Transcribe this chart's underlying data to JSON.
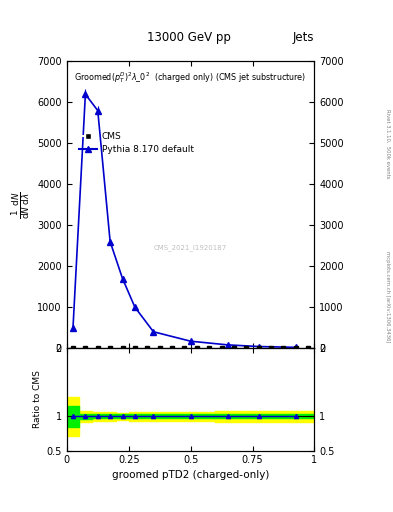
{
  "title_top": "13000 GeV pp",
  "title_right": "Jets",
  "plot_title": "Groomed$(p_T^D)^2\\lambda\\_0^2$  (charged only) (CMS jet substructure)",
  "watermark": "CMS_2021_I1920187",
  "rivet_label": "Rivet 3.1.10,  500k events",
  "mcplots_label": "mcplots.cern.ch [arXiv:1306.3436]",
  "pythia_x": [
    0.025,
    0.075,
    0.125,
    0.175,
    0.225,
    0.275,
    0.35,
    0.5,
    0.65,
    0.775,
    0.925
  ],
  "pythia_y": [
    500,
    6200,
    5800,
    2600,
    1700,
    1000,
    400,
    170,
    80,
    40,
    20
  ],
  "pythia_yerr": [
    80,
    120,
    110,
    70,
    50,
    40,
    25,
    15,
    10,
    8,
    6
  ],
  "cms_x": [
    0.025,
    0.075,
    0.125,
    0.175,
    0.225,
    0.275,
    0.325,
    0.375,
    0.425,
    0.475,
    0.525,
    0.575,
    0.625,
    0.675,
    0.725,
    0.775,
    0.825,
    0.875,
    0.925,
    0.975
  ],
  "cms_y": [
    5,
    5,
    5,
    5,
    5,
    5,
    5,
    5,
    5,
    5,
    5,
    5,
    5,
    5,
    5,
    5,
    5,
    5,
    5,
    5
  ],
  "ratio_x_edges": [
    0.0,
    0.05,
    0.1,
    0.15,
    0.2,
    0.25,
    0.3,
    0.4,
    0.6,
    0.7,
    0.85,
    1.0
  ],
  "ratio_yellow_lo": [
    0.72,
    0.92,
    0.93,
    0.94,
    0.95,
    0.94,
    0.93,
    0.93,
    0.92,
    0.92,
    0.92
  ],
  "ratio_yellow_hi": [
    1.28,
    1.08,
    1.07,
    1.06,
    1.05,
    1.06,
    1.07,
    1.07,
    1.08,
    1.08,
    1.08
  ],
  "ratio_green_lo": [
    0.85,
    0.96,
    0.97,
    0.97,
    0.97,
    0.97,
    0.97,
    0.97,
    0.97,
    0.97,
    0.97
  ],
  "ratio_green_hi": [
    1.15,
    1.04,
    1.03,
    1.03,
    1.03,
    1.03,
    1.03,
    1.03,
    1.03,
    1.03,
    1.03
  ],
  "xlim": [
    0.0,
    1.0
  ],
  "ylim_main": [
    0,
    7000
  ],
  "ylim_ratio": [
    0.5,
    2.0
  ],
  "xlabel": "groomed pTD2 (charged-only)",
  "ylabel_ratio": "Ratio to CMS",
  "yticks_main": [
    0,
    1000,
    2000,
    3000,
    4000,
    5000,
    6000,
    7000
  ],
  "xticks": [
    0,
    0.25,
    0.5,
    0.75,
    1.0
  ],
  "xtick_labels": [
    "0",
    "0.25",
    "0.5",
    "0.75",
    "1"
  ],
  "blue_color": "#0000cc",
  "green_band_color": "#00ee00",
  "yellow_band_color": "#ffff00"
}
